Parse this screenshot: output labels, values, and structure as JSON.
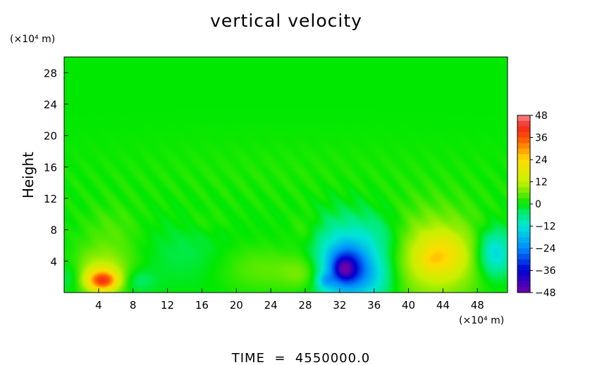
{
  "chart_data": {
    "type": "heatmap",
    "title": "vertical velocity",
    "ylabel": "Height",
    "xunit": "(×10⁴ m)",
    "yunit": "(×10⁴ m)",
    "xlim": [
      0,
      51.5
    ],
    "ylim": [
      0,
      30
    ],
    "xticks": [
      4,
      8,
      12,
      16,
      20,
      24,
      28,
      32,
      36,
      40,
      44,
      48
    ],
    "yticks": [
      4,
      8,
      12,
      16,
      20,
      24,
      28
    ],
    "colorbar": {
      "ticks": [
        48,
        36,
        24,
        12,
        0,
        -12,
        -24,
        -36,
        -48
      ],
      "range": [
        -48,
        48
      ]
    },
    "background_value": 0,
    "features": [
      {
        "x": 4.5,
        "y": 1.5,
        "rx": 1.8,
        "ry": 1.3,
        "value": 30
      },
      {
        "x": 4.3,
        "y": 2.5,
        "rx": 3.5,
        "ry": 2.8,
        "value": 12
      },
      {
        "x": 5.5,
        "y": 7.5,
        "rx": 3.5,
        "ry": 3.5,
        "value": 4
      },
      {
        "x": 8.5,
        "y": 1.5,
        "rx": 2.0,
        "ry": 1.5,
        "value": -6
      },
      {
        "x": 0.7,
        "y": 2.0,
        "rx": 1.5,
        "ry": 2.0,
        "value": -6
      },
      {
        "x": 14,
        "y": 5,
        "rx": 4.5,
        "ry": 4,
        "value": -3
      },
      {
        "x": 16.5,
        "y": 9,
        "rx": 2.5,
        "ry": 1.5,
        "value": 2
      },
      {
        "x": 23,
        "y": 3,
        "rx": 5,
        "ry": 3,
        "value": 5
      },
      {
        "x": 28,
        "y": 2.5,
        "rx": 2.5,
        "ry": 2.5,
        "value": 8
      },
      {
        "x": 28,
        "y": 8,
        "rx": 1.8,
        "ry": 2.5,
        "value": 4
      },
      {
        "x": 33,
        "y": 3.5,
        "rx": 4.5,
        "ry": 5.5,
        "value": -18
      },
      {
        "x": 32.8,
        "y": 3.2,
        "rx": 2.2,
        "ry": 2.6,
        "value": -20
      },
      {
        "x": 32.5,
        "y": 3.0,
        "rx": 1.0,
        "ry": 1.2,
        "value": -12
      },
      {
        "x": 30.3,
        "y": 1.5,
        "rx": 1.0,
        "ry": 1.0,
        "value": -10
      },
      {
        "x": 36,
        "y": 2,
        "rx": 2.5,
        "ry": 2.5,
        "value": -6
      },
      {
        "x": 43,
        "y": 4.5,
        "rx": 5.5,
        "ry": 5.5,
        "value": 15
      },
      {
        "x": 44,
        "y": 4.8,
        "rx": 2.5,
        "ry": 2.5,
        "value": 10
      },
      {
        "x": 42.5,
        "y": 4,
        "rx": 1.2,
        "ry": 1.2,
        "value": 4
      },
      {
        "x": 50,
        "y": 5,
        "rx": 2,
        "ry": 3,
        "value": -16
      },
      {
        "x": 37,
        "y": 7,
        "rx": 3,
        "ry": 3,
        "value": -4
      },
      {
        "x": 25,
        "y": 15,
        "rx": 30,
        "ry": 5,
        "value": 1.5
      }
    ]
  },
  "footer": {
    "time_text": "TIME  =  4550000.0"
  }
}
